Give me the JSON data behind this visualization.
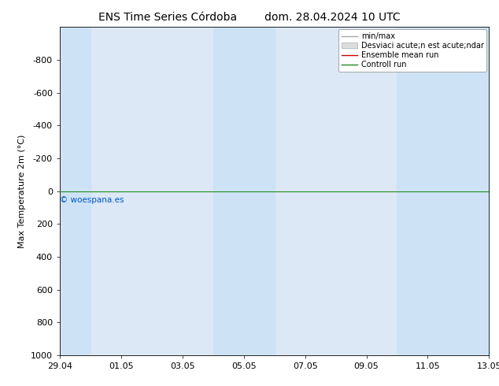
{
  "title_left": "ENS Time Series Córdoba",
  "title_right": "dom. 28.04.2024 10 UTC",
  "ylabel": "Max Temperature 2m (°C)",
  "background_color": "#ffffff",
  "plot_bg_color": "#dce8f5",
  "ylim": [
    1000,
    -1000
  ],
  "yticks": [
    -800,
    -600,
    -400,
    -200,
    0,
    200,
    400,
    600,
    800,
    1000
  ],
  "ytick_labels": [
    "-800",
    "-600",
    "-400",
    "-200",
    "0",
    "200",
    "400",
    "600",
    "800",
    "1000"
  ],
  "x_start": "2024-04-29",
  "x_end": "2024-05-13",
  "xtick_dates": [
    "2024-04-29",
    "2024-05-01",
    "2024-05-03",
    "2024-05-05",
    "2024-05-07",
    "2024-05-09",
    "2024-05-11",
    "2024-05-13"
  ],
  "xtick_labels": [
    "29.04",
    "01.05",
    "03.05",
    "05.05",
    "07.05",
    "09.05",
    "11.05",
    "13.05"
  ],
  "shaded_bands": [
    [
      "2024-04-29",
      "2024-04-30"
    ],
    [
      "2024-05-04",
      "2024-05-06"
    ],
    [
      "2024-05-10",
      "2024-05-13"
    ]
  ],
  "band_color": "#cde3f5",
  "control_run_color": "#228B22",
  "ensemble_mean_color": "#cc0000",
  "minmax_color": "#aaaaaa",
  "std_color": "#dddddd",
  "watermark": "© woespana.es",
  "watermark_color": "#0055cc",
  "legend_labels": [
    "min/max",
    "Desviaci acute;n est acute;ndar",
    "Ensemble mean run",
    "Controll run"
  ],
  "title_fontsize": 10,
  "tick_fontsize": 8,
  "ylabel_fontsize": 8,
  "legend_fontsize": 7
}
